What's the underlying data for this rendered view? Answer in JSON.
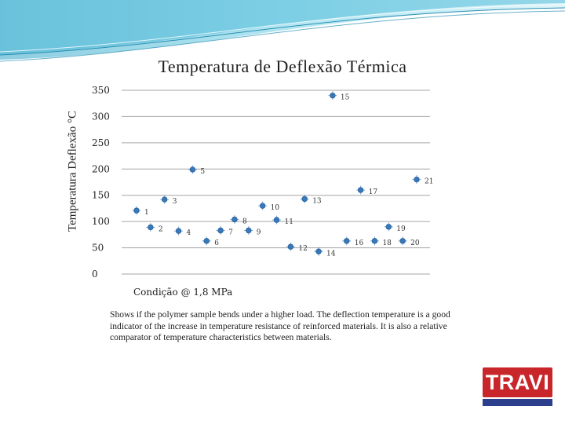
{
  "chart_data": {
    "type": "scatter",
    "title": "Temperatura de Deflexão  Térmica",
    "xlabel": "Condição @ 1,8 MPa",
    "ylabel": "Temperatura Deflexão °C",
    "ylim": [
      0,
      350
    ],
    "yticks": [
      0,
      50,
      100,
      150,
      200,
      250,
      300,
      350
    ],
    "grid": true,
    "points": [
      {
        "label": "1",
        "x": 1,
        "y": 121
      },
      {
        "label": "2",
        "x": 2,
        "y": 89
      },
      {
        "label": "3",
        "x": 3,
        "y": 142
      },
      {
        "label": "4",
        "x": 4,
        "y": 82
      },
      {
        "label": "5",
        "x": 5,
        "y": 199
      },
      {
        "label": "6",
        "x": 6,
        "y": 63
      },
      {
        "label": "7",
        "x": 7,
        "y": 83
      },
      {
        "label": "8",
        "x": 8,
        "y": 104
      },
      {
        "label": "9",
        "x": 9,
        "y": 83
      },
      {
        "label": "10",
        "x": 10,
        "y": 130
      },
      {
        "label": "11",
        "x": 11,
        "y": 103
      },
      {
        "label": "12",
        "x": 12,
        "y": 52
      },
      {
        "label": "13",
        "x": 13,
        "y": 143
      },
      {
        "label": "14",
        "x": 14,
        "y": 43
      },
      {
        "label": "15",
        "x": 15,
        "y": 340
      },
      {
        "label": "16",
        "x": 16,
        "y": 63
      },
      {
        "label": "17",
        "x": 17,
        "y": 160
      },
      {
        "label": "18",
        "x": 18,
        "y": 63
      },
      {
        "label": "19",
        "x": 19,
        "y": 90
      },
      {
        "label": "20",
        "x": 20,
        "y": 63
      },
      {
        "label": "21",
        "x": 21,
        "y": 180
      }
    ]
  },
  "description": "Shows if the polymer sample bends under a higher load. The deflection temperature is a good indicator of the increase in temperature resistance of reinforced materials. It is also a relative comparator of temperature characteristics between materials.",
  "logo": {
    "text": "TRAVI",
    "color": "#c8262b",
    "bar_color": "#2b3f8c"
  },
  "theme": {
    "marker": "#3a78b8",
    "grid": "#a6a6a6",
    "banner": "#5fc3dc"
  }
}
